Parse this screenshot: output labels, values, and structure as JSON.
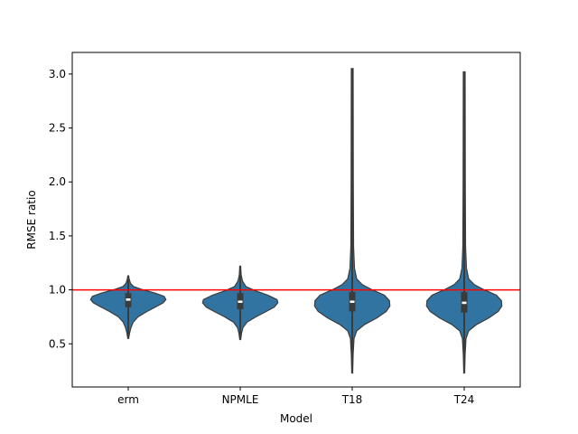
{
  "chart_data": {
    "type": "violin",
    "title": "",
    "xlabel": "Model",
    "ylabel": "RMSE ratio",
    "categories": [
      "erm",
      "NPMLE",
      "T18",
      "T24"
    ],
    "ylim": [
      0.1,
      3.2
    ],
    "yticks": [
      0.5,
      1.0,
      1.5,
      2.0,
      2.5,
      3.0
    ],
    "ytick_labels": [
      "0.5",
      "1.0",
      "1.5",
      "2.0",
      "2.5",
      "3.0"
    ],
    "reference_line": {
      "y": 1.0,
      "color": "#ff0000"
    },
    "fill_color": "#3274a1",
    "edge_color": "#3b3b3b",
    "grid": false,
    "series": [
      {
        "category": "erm",
        "min": 0.55,
        "q1": 0.84,
        "median": 0.91,
        "q3": 0.97,
        "max": 1.13,
        "density": [
          [
            0.55,
            0.01
          ],
          [
            0.6,
            0.03
          ],
          [
            0.65,
            0.06
          ],
          [
            0.7,
            0.11
          ],
          [
            0.75,
            0.22
          ],
          [
            0.8,
            0.42
          ],
          [
            0.85,
            0.65
          ],
          [
            0.88,
            0.78
          ],
          [
            0.91,
            0.84
          ],
          [
            0.94,
            0.8
          ],
          [
            0.97,
            0.6
          ],
          [
            1.0,
            0.33
          ],
          [
            1.03,
            0.12
          ],
          [
            1.06,
            0.05
          ],
          [
            1.1,
            0.02
          ],
          [
            1.13,
            0.01
          ]
        ]
      },
      {
        "category": "NPMLE",
        "min": 0.54,
        "q1": 0.82,
        "median": 0.89,
        "q3": 0.97,
        "max": 1.22,
        "density": [
          [
            0.54,
            0.01
          ],
          [
            0.6,
            0.03
          ],
          [
            0.65,
            0.06
          ],
          [
            0.7,
            0.15
          ],
          [
            0.75,
            0.35
          ],
          [
            0.8,
            0.58
          ],
          [
            0.84,
            0.76
          ],
          [
            0.88,
            0.84
          ],
          [
            0.91,
            0.82
          ],
          [
            0.95,
            0.62
          ],
          [
            0.99,
            0.35
          ],
          [
            1.03,
            0.13
          ],
          [
            1.08,
            0.05
          ],
          [
            1.14,
            0.02
          ],
          [
            1.22,
            0.01
          ]
        ]
      },
      {
        "category": "T18",
        "min": 0.23,
        "q1": 0.8,
        "median": 0.89,
        "q3": 0.98,
        "max": 3.05,
        "density": [
          [
            0.23,
            0.01
          ],
          [
            0.4,
            0.02
          ],
          [
            0.55,
            0.04
          ],
          [
            0.62,
            0.1
          ],
          [
            0.68,
            0.28
          ],
          [
            0.74,
            0.55
          ],
          [
            0.8,
            0.76
          ],
          [
            0.85,
            0.84
          ],
          [
            0.9,
            0.83
          ],
          [
            0.95,
            0.72
          ],
          [
            1.0,
            0.45
          ],
          [
            1.05,
            0.22
          ],
          [
            1.1,
            0.1
          ],
          [
            1.2,
            0.05
          ],
          [
            1.4,
            0.03
          ],
          [
            2.0,
            0.025
          ],
          [
            3.05,
            0.02
          ]
        ]
      },
      {
        "category": "T24",
        "min": 0.23,
        "q1": 0.79,
        "median": 0.88,
        "q3": 0.98,
        "max": 3.02,
        "density": [
          [
            0.23,
            0.01
          ],
          [
            0.4,
            0.02
          ],
          [
            0.55,
            0.04
          ],
          [
            0.62,
            0.1
          ],
          [
            0.68,
            0.28
          ],
          [
            0.74,
            0.55
          ],
          [
            0.8,
            0.76
          ],
          [
            0.85,
            0.84
          ],
          [
            0.9,
            0.83
          ],
          [
            0.95,
            0.72
          ],
          [
            1.0,
            0.45
          ],
          [
            1.05,
            0.22
          ],
          [
            1.1,
            0.1
          ],
          [
            1.2,
            0.05
          ],
          [
            1.4,
            0.03
          ],
          [
            2.0,
            0.025
          ],
          [
            3.02,
            0.02
          ]
        ]
      }
    ]
  }
}
